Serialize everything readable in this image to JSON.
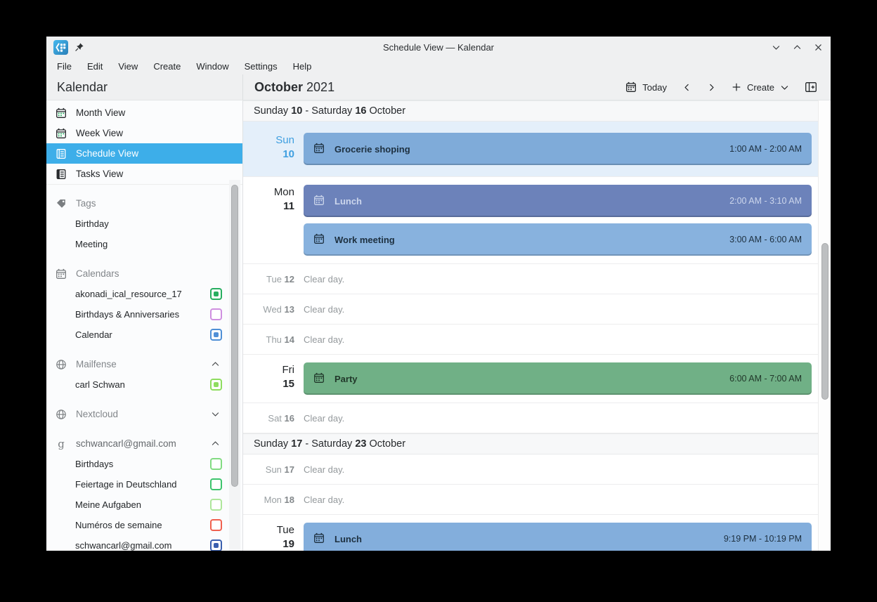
{
  "colors": {
    "accent": "#3daee9",
    "window_chrome": "#eff0f1",
    "today_row_bg": "#e4effa",
    "today_label": "#3f9fe0"
  },
  "window": {
    "title": "Schedule View — Kalendar",
    "controls": [
      "minimize",
      "maximize",
      "close"
    ]
  },
  "menu_bar": {
    "items": [
      "File",
      "Edit",
      "View",
      "Create",
      "Window",
      "Settings",
      "Help"
    ]
  },
  "toolbar": {
    "app_title": "Kalendar",
    "month": "October",
    "year": "2021",
    "today_label": "Today",
    "create_label": "Create"
  },
  "sidebar": {
    "views": [
      {
        "label": "Month View",
        "icon": "month-view-icon",
        "selected": false
      },
      {
        "label": "Week View",
        "icon": "week-view-icon",
        "selected": false
      },
      {
        "label": "Schedule View",
        "icon": "schedule-view-icon",
        "selected": true
      },
      {
        "label": "Tasks View",
        "icon": "tasks-view-icon",
        "selected": false
      }
    ],
    "sections": [
      {
        "title": "Tags",
        "icon": "tag-icon",
        "items": [
          {
            "label": "Birthday"
          },
          {
            "label": "Meeting"
          }
        ]
      },
      {
        "title": "Calendars",
        "icon": "calendar-icon",
        "items": [
          {
            "label": "akonadi_ical_resource_17",
            "checkbox_color": "#27ae60",
            "checked": true
          },
          {
            "label": "Birthdays & Anniversaries",
            "checkbox_color": "#cf8fe0",
            "checked": false
          },
          {
            "label": "Calendar",
            "checkbox_color": "#4f8fd6",
            "checked": true
          }
        ]
      },
      {
        "title": "Mailfense",
        "icon": "globe-icon",
        "chevron": "up",
        "items": [
          {
            "label": "carl Schwan",
            "checkbox_color": "#8edd60",
            "checked": true
          }
        ]
      },
      {
        "title": "Nextcloud",
        "icon": "globe-icon",
        "chevron": "down",
        "items": []
      },
      {
        "title": "schwancarl@gmail.com",
        "icon": "google-icon",
        "chevron": "up",
        "strong": true,
        "items": [
          {
            "label": "Birthdays",
            "checkbox_color": "#82db82",
            "checked": false
          },
          {
            "label": "Feiertage in Deutschland",
            "checkbox_color": "#3ec46d",
            "checked": false
          },
          {
            "label": "Meine Aufgaben",
            "checkbox_color": "#aee69b",
            "checked": false
          },
          {
            "label": "Numéros de semaine",
            "checkbox_color": "#f0614f",
            "checked": false
          },
          {
            "label": "schwancarl@gmail.com",
            "checkbox_color": "#3a5fae",
            "checked": true
          }
        ]
      }
    ]
  },
  "schedule": {
    "weeks": [
      {
        "header": [
          {
            "text": "Sunday ",
            "bold": false
          },
          {
            "text": "10",
            "bold": true
          },
          {
            "text": " - Saturday ",
            "bold": false
          },
          {
            "text": "16",
            "bold": true
          },
          {
            "text": " October",
            "bold": false
          }
        ],
        "rows": [
          {
            "type": "events",
            "day": "Sun",
            "date": "10",
            "today": true,
            "events": [
              {
                "title": "Grocerie shoping",
                "time": "1:00 AM - 2:00 AM",
                "color": "#7fabd9",
                "text_color": "#1d3040"
              }
            ]
          },
          {
            "type": "events",
            "day": "Mon",
            "date": "11",
            "events": [
              {
                "title": "Lunch",
                "time": "2:00 AM - 3:10 AM",
                "color": "#6c82ba",
                "text_color": "#ccd6ec"
              },
              {
                "title": "Work meeting",
                "time": "3:00 AM - 6:00 AM",
                "color": "#88b2de",
                "text_color": "#1d3040"
              }
            ]
          },
          {
            "type": "clear",
            "day": "Tue",
            "date": "12",
            "note": "Clear day."
          },
          {
            "type": "clear",
            "day": "Wed",
            "date": "13",
            "note": "Clear day."
          },
          {
            "type": "clear",
            "day": "Thu",
            "date": "14",
            "note": "Clear day."
          },
          {
            "type": "events",
            "day": "Fri",
            "date": "15",
            "events": [
              {
                "title": "Party",
                "time": "6:00 AM - 7:00 AM",
                "color": "#70b086",
                "text_color": "#21382a"
              }
            ]
          },
          {
            "type": "clear",
            "day": "Sat",
            "date": "16",
            "note": "Clear day."
          }
        ]
      },
      {
        "header": [
          {
            "text": "Sunday ",
            "bold": false
          },
          {
            "text": "17",
            "bold": true
          },
          {
            "text": " - Saturday ",
            "bold": false
          },
          {
            "text": "23",
            "bold": true
          },
          {
            "text": " October",
            "bold": false
          }
        ],
        "rows": [
          {
            "type": "clear",
            "day": "Sun",
            "date": "17",
            "note": "Clear day."
          },
          {
            "type": "clear",
            "day": "Mon",
            "date": "18",
            "note": "Clear day."
          },
          {
            "type": "events",
            "day": "Tue",
            "date": "19",
            "events": [
              {
                "title": "Lunch",
                "time": "9:19 PM - 10:19 PM",
                "color": "#83aedc",
                "text_color": "#1d3040"
              }
            ]
          }
        ]
      }
    ]
  }
}
